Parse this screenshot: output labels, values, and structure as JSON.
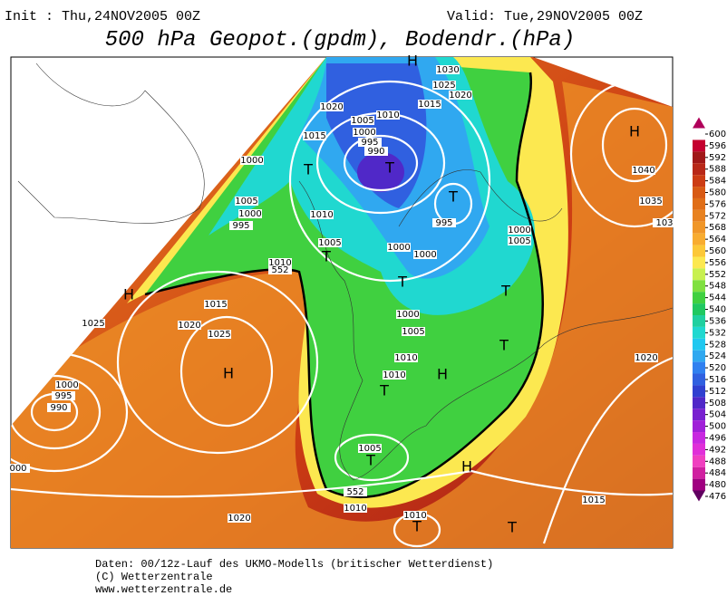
{
  "header": {
    "init": "Init : Thu,24NOV2005 00Z",
    "valid": "Valid: Tue,29NOV2005 00Z",
    "title": "500 hPa Geopot.(gpdm), Bodendr.(hPa)"
  },
  "map_labels": [
    "H",
    "1030",
    "1025",
    "1020",
    "1015",
    "1020",
    "1010",
    "1005",
    "1015",
    "1000",
    "995",
    "990",
    "T",
    "T",
    "1000",
    "H",
    "1040",
    "T",
    "1005",
    "1000",
    "995",
    "1010",
    "995",
    "1000",
    "1005",
    "1035",
    "103",
    "1005",
    "T",
    "1000",
    "1000",
    "1010",
    "552",
    "T",
    "H",
    "1015",
    "1025",
    "1020",
    "1025",
    "1000",
    "1005",
    "T",
    "T",
    "H",
    "1010",
    "1020",
    "1010",
    "H",
    "T",
    "1000",
    "995",
    "990",
    "1005",
    "T",
    "H",
    "000",
    "552",
    "1010",
    "1015",
    "1010",
    "T",
    "T",
    "1020"
  ],
  "colorbar": {
    "levels": [
      600,
      596,
      592,
      588,
      584,
      580,
      576,
      572,
      568,
      564,
      560,
      556,
      552,
      548,
      544,
      540,
      536,
      532,
      528,
      524,
      520,
      516,
      512,
      508,
      504,
      500,
      496,
      492,
      488,
      484,
      480,
      476
    ],
    "colors": [
      "#b0005a",
      "#c4002e",
      "#a01818",
      "#b82818",
      "#cc3c14",
      "#d85a14",
      "#e06e18",
      "#e88220",
      "#f09628",
      "#f8ac30",
      "#fcc838",
      "#fce850",
      "#c8f050",
      "#80e040",
      "#40d040",
      "#20c860",
      "#20d0a0",
      "#20d8d0",
      "#20c8f0",
      "#30a8f0",
      "#3080f0",
      "#3060e0",
      "#3040d0",
      "#5028c8",
      "#7820d0",
      "#a020d8",
      "#c828e0",
      "#e030d8",
      "#f040c0",
      "#d020a0",
      "#a00080",
      "#600060"
    ]
  },
  "footer": [
    "Daten: 00/12z-Lauf des UKMO-Modells (britischer Wetterdienst)",
    "(C) Wetterzentrale",
    "www.wetterzentrale.de"
  ]
}
